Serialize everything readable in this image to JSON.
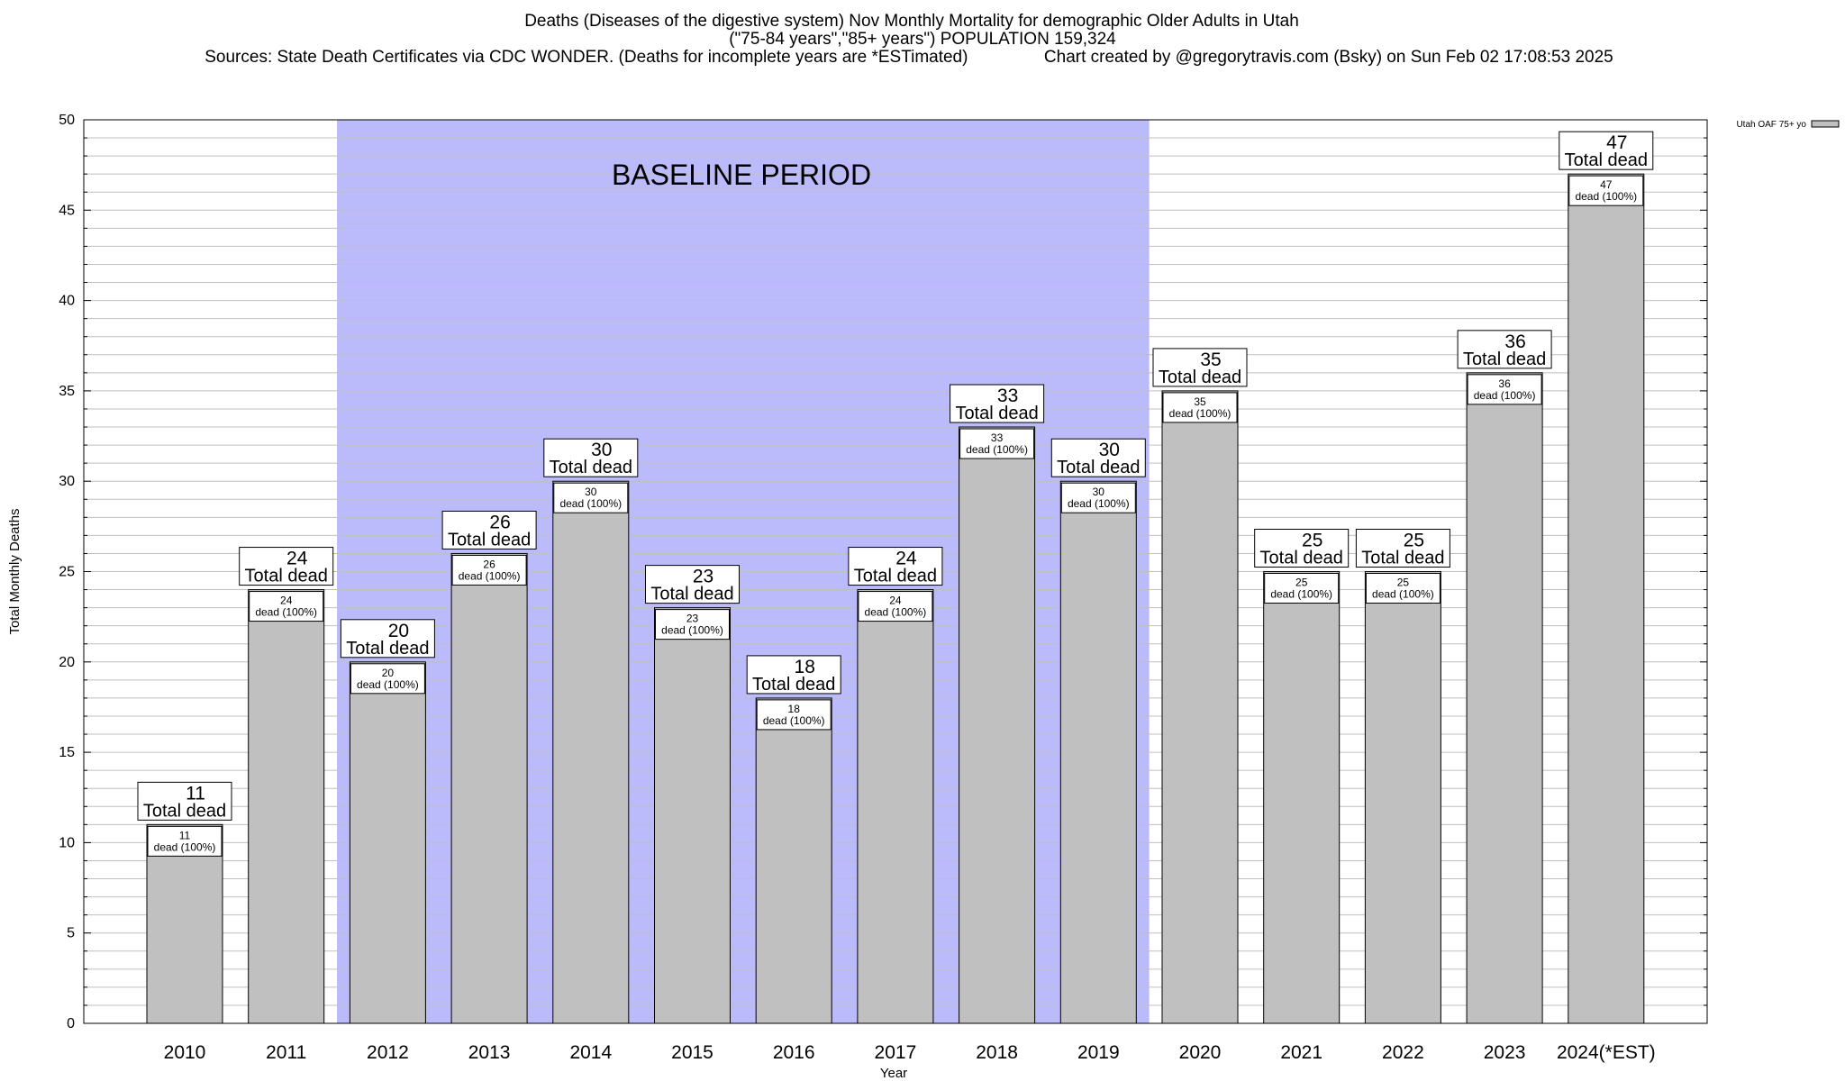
{
  "chart_data": {
    "type": "bar",
    "title_line1": "Deaths (Diseases of the digestive system) Nov Monthly Mortality for demographic Older Adults in Utah",
    "title_line2": "(\"75-84 years\",\"85+ years\") POPULATION 159,324",
    "title_line3": "Sources: State Death Certificates via CDC WONDER. (Deaths for incomplete years are *ESTimated)                Chart created by @gregorytravis.com (Bsky) on Sun Feb 02 17:08:53 2025",
    "xlabel": "Year",
    "ylabel": "Total Monthly Deaths",
    "ylim": [
      0,
      50
    ],
    "y_ticks": [
      0,
      5,
      10,
      15,
      20,
      25,
      30,
      35,
      40,
      45,
      50
    ],
    "grid": "horizontal minor and major lines",
    "categories": [
      "2010",
      "2011",
      "2012",
      "2013",
      "2014",
      "2015",
      "2016",
      "2017",
      "2018",
      "2019",
      "2020",
      "2021",
      "2022",
      "2023",
      "2024(*EST)"
    ],
    "series": [
      {
        "name": "Utah OAF 75+ yo",
        "values": [
          11,
          24,
          20,
          26,
          30,
          23,
          18,
          24,
          33,
          30,
          35,
          25,
          25,
          36,
          47
        ]
      }
    ],
    "bar_label_suffix": "Total dead",
    "inner_label_text": "dead (100%)",
    "baseline_period": {
      "label": "BASELINE PERIOD",
      "from": "2012",
      "to": "2019"
    },
    "legend": {
      "position": "top-right",
      "entries": [
        "Utah OAF 75+ yo"
      ]
    },
    "colors": {
      "bar_fill": "#c0c0c0",
      "baseline_shade": "#bbbbfb",
      "grid": "#bfbfbf"
    }
  }
}
